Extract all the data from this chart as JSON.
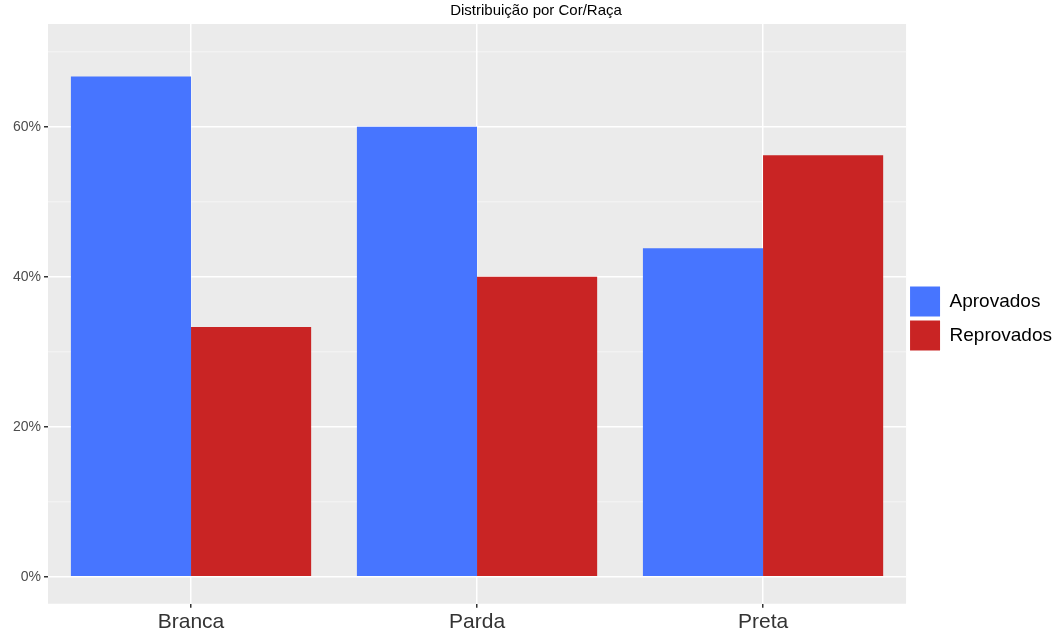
{
  "chart_data": {
    "type": "bar",
    "title": "Distribuição por Cor/Raça",
    "categories": [
      "Branca",
      "Parda",
      "Preta"
    ],
    "series": [
      {
        "name": "Aprovados",
        "color": "#4775ff",
        "values": [
          66.7,
          60,
          43.8
        ]
      },
      {
        "name": "Reprovados",
        "color": "#c92424",
        "values": [
          33.3,
          40,
          56.2
        ]
      }
    ],
    "ylim": [
      -3.6,
      73.7
    ],
    "yticks": [
      {
        "value": 0,
        "label": "0%"
      },
      {
        "value": 20,
        "label": "20%"
      },
      {
        "value": 40,
        "label": "40%"
      },
      {
        "value": 60,
        "label": "60%"
      }
    ],
    "grid": true,
    "legend": "right"
  }
}
